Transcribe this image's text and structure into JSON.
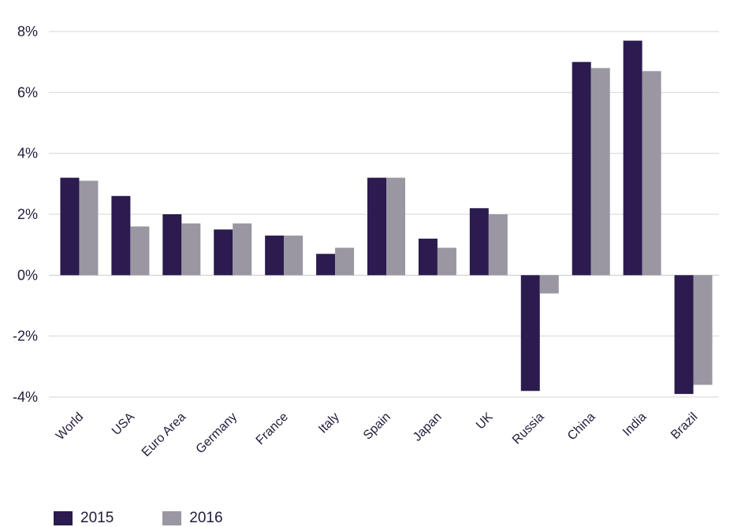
{
  "chart_data": {
    "type": "bar",
    "title": "",
    "xlabel": "",
    "ylabel": "",
    "ylim": [
      -4,
      8
    ],
    "yticks": [
      8,
      6,
      4,
      2,
      0,
      -2,
      -4
    ],
    "ytick_labels": [
      "8%",
      "6%",
      "4%",
      "2%",
      "0%",
      "-2%",
      "-4%"
    ],
    "grid": true,
    "legend_position": "bottom-left",
    "categories": [
      "World",
      "USA",
      "Euro Area",
      "Germany",
      "France",
      "Italy",
      "Spain",
      "Japan",
      "UK",
      "Russia",
      "China",
      "India",
      "Brazil"
    ],
    "series": [
      {
        "name": "2015",
        "color": "#2b1b4f",
        "values": [
          3.2,
          2.6,
          2.0,
          1.5,
          1.3,
          0.7,
          3.2,
          1.2,
          2.2,
          -3.8,
          7.0,
          7.7,
          -3.9
        ]
      },
      {
        "name": "2016",
        "color": "#9a97a3",
        "values": [
          3.1,
          1.6,
          1.7,
          1.7,
          1.3,
          0.9,
          3.2,
          0.9,
          2.0,
          -0.6,
          6.8,
          6.7,
          -3.6
        ]
      }
    ]
  }
}
